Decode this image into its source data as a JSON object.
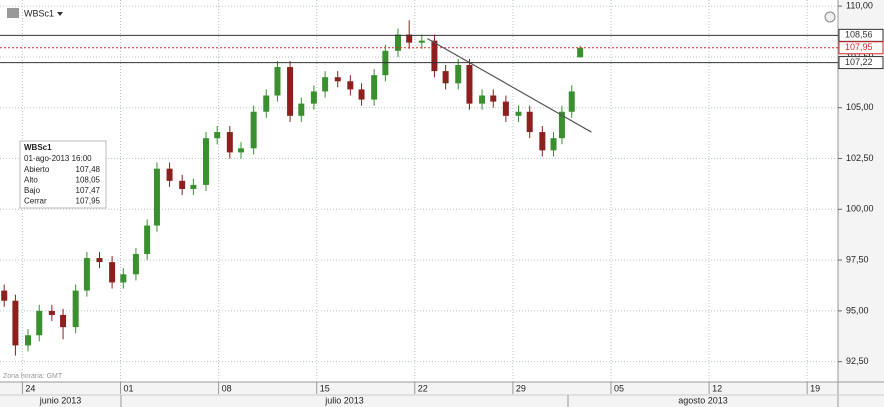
{
  "chart_data": {
    "type": "candlestick",
    "title": "WBSc1",
    "timezone": "Zona horaria: GMT",
    "months": [
      "junio 2013",
      "julio 2013",
      "agosto 2013"
    ],
    "xlim": [
      -1.6,
      58.2
    ],
    "xticks": [
      {
        "value": 0,
        "label": "24"
      },
      {
        "value": 7,
        "label": "01"
      },
      {
        "value": 14,
        "label": "08"
      },
      {
        "value": 21,
        "label": "15"
      },
      {
        "value": 28,
        "label": "22"
      },
      {
        "value": 35,
        "label": "29"
      },
      {
        "value": 42,
        "label": "05"
      },
      {
        "value": 49,
        "label": "12"
      },
      {
        "value": 56,
        "label": "19"
      }
    ],
    "ylim": [
      91.5,
      110.3
    ],
    "yticks": [
      {
        "value": 92.5,
        "label": "92,50"
      },
      {
        "value": 95,
        "label": "95,00"
      },
      {
        "value": 97.5,
        "label": "97,50"
      },
      {
        "value": 100,
        "label": "100,00"
      },
      {
        "value": 102.5,
        "label": "102,50"
      },
      {
        "value": 105,
        "label": "105,00"
      },
      {
        "value": 107.5,
        "label": "107,50"
      },
      {
        "value": 110,
        "label": "110,00"
      }
    ],
    "grid": true,
    "up_color": "#3a8f2e",
    "down_color": "#8e1f1f",
    "x": [
      -1.3,
      -0.5,
      0.4,
      1.2,
      2.1,
      2.9,
      3.8,
      4.6,
      5.5,
      6.4,
      7.2,
      8.1,
      8.9,
      9.6,
      10.5,
      11.4,
      12.2,
      13.1,
      13.9,
      14.8,
      15.6,
      16.5,
      17.4,
      18.2,
      19.1,
      19.9,
      20.8,
      21.6,
      22.5,
      23.4,
      24.2,
      25.1,
      25.9,
      26.8,
      27.6,
      28.5,
      29.4,
      30.2,
      31.1,
      31.9,
      32.8,
      33.6,
      34.5,
      35.4,
      36.2,
      37.1,
      37.9,
      38.5,
      39.2,
      39.8
    ],
    "open": [
      96.0,
      95.5,
      93.3,
      93.8,
      95.0,
      94.8,
      94.2,
      96.0,
      97.6,
      97.4,
      96.4,
      96.8,
      97.8,
      99.2,
      102.0,
      101.4,
      101.0,
      101.2,
      103.5,
      103.8,
      102.8,
      103.0,
      104.8,
      105.6,
      107.0,
      104.6,
      105.2,
      105.8,
      106.5,
      106.3,
      105.9,
      105.4,
      106.6,
      107.8,
      108.6,
      108.2,
      108.3,
      106.8,
      106.2,
      107.1,
      105.2,
      105.6,
      105.3,
      104.6,
      104.8,
      103.8,
      102.9,
      103.5,
      104.8,
      107.48
    ],
    "high": [
      96.3,
      95.8,
      94.1,
      95.3,
      95.3,
      95.1,
      96.3,
      97.9,
      97.9,
      97.7,
      97.1,
      98.1,
      99.5,
      102.3,
      102.3,
      101.7,
      101.5,
      103.8,
      104.1,
      104.1,
      103.3,
      105.1,
      105.9,
      107.3,
      107.3,
      105.5,
      106.1,
      106.8,
      106.8,
      106.6,
      106.2,
      106.9,
      108.1,
      108.9,
      109.3,
      108.6,
      108.6,
      107.1,
      107.4,
      107.4,
      105.9,
      105.9,
      105.6,
      105.1,
      105.1,
      104.1,
      103.8,
      105.1,
      106.1,
      108.05
    ],
    "low": [
      95.2,
      92.8,
      93.0,
      93.5,
      94.5,
      93.6,
      93.9,
      95.7,
      97.1,
      96.1,
      96.1,
      96.5,
      97.5,
      98.9,
      101.1,
      100.7,
      100.7,
      100.9,
      103.2,
      102.5,
      102.5,
      102.7,
      104.5,
      105.3,
      104.3,
      104.3,
      104.9,
      105.5,
      106.0,
      105.6,
      105.1,
      105.1,
      106.3,
      107.5,
      107.9,
      107.9,
      106.5,
      105.9,
      105.9,
      104.9,
      104.9,
      105.0,
      104.3,
      104.3,
      103.5,
      102.6,
      102.6,
      103.2,
      104.5,
      107.47
    ],
    "close": [
      95.5,
      93.3,
      93.8,
      95.0,
      94.8,
      94.2,
      96.0,
      97.6,
      97.4,
      96.4,
      96.8,
      97.8,
      99.2,
      102.0,
      101.4,
      101.0,
      101.2,
      103.5,
      103.8,
      102.8,
      103.0,
      104.8,
      105.6,
      107.0,
      104.6,
      105.2,
      105.8,
      106.5,
      106.3,
      105.9,
      105.4,
      106.6,
      107.8,
      108.6,
      108.2,
      108.3,
      106.8,
      106.2,
      107.1,
      105.2,
      105.6,
      105.3,
      104.6,
      104.8,
      103.8,
      102.9,
      103.5,
      104.8,
      105.8,
      107.95
    ],
    "levels": [
      {
        "value": 108.56,
        "label": "108,56",
        "color": "#333",
        "dashed": false
      },
      {
        "value": 107.95,
        "label": "107,95",
        "color": "#d42a2a",
        "dashed": true
      },
      {
        "value": 107.22,
        "label": "107,22",
        "color": "#333",
        "dashed": false
      }
    ],
    "trendline": {
      "x": [
        28.9,
        40.6
      ],
      "y": [
        108.4,
        103.8
      ],
      "color": "#555"
    },
    "info_box": {
      "title": "WBSc1",
      "date": "01-ago-2013 16:00",
      "rows": [
        [
          "Abierto",
          "107,48"
        ],
        [
          "Alto",
          "108,05"
        ],
        [
          "Bajo",
          "107,47"
        ],
        [
          "Cerrar",
          "107,95"
        ]
      ]
    }
  }
}
